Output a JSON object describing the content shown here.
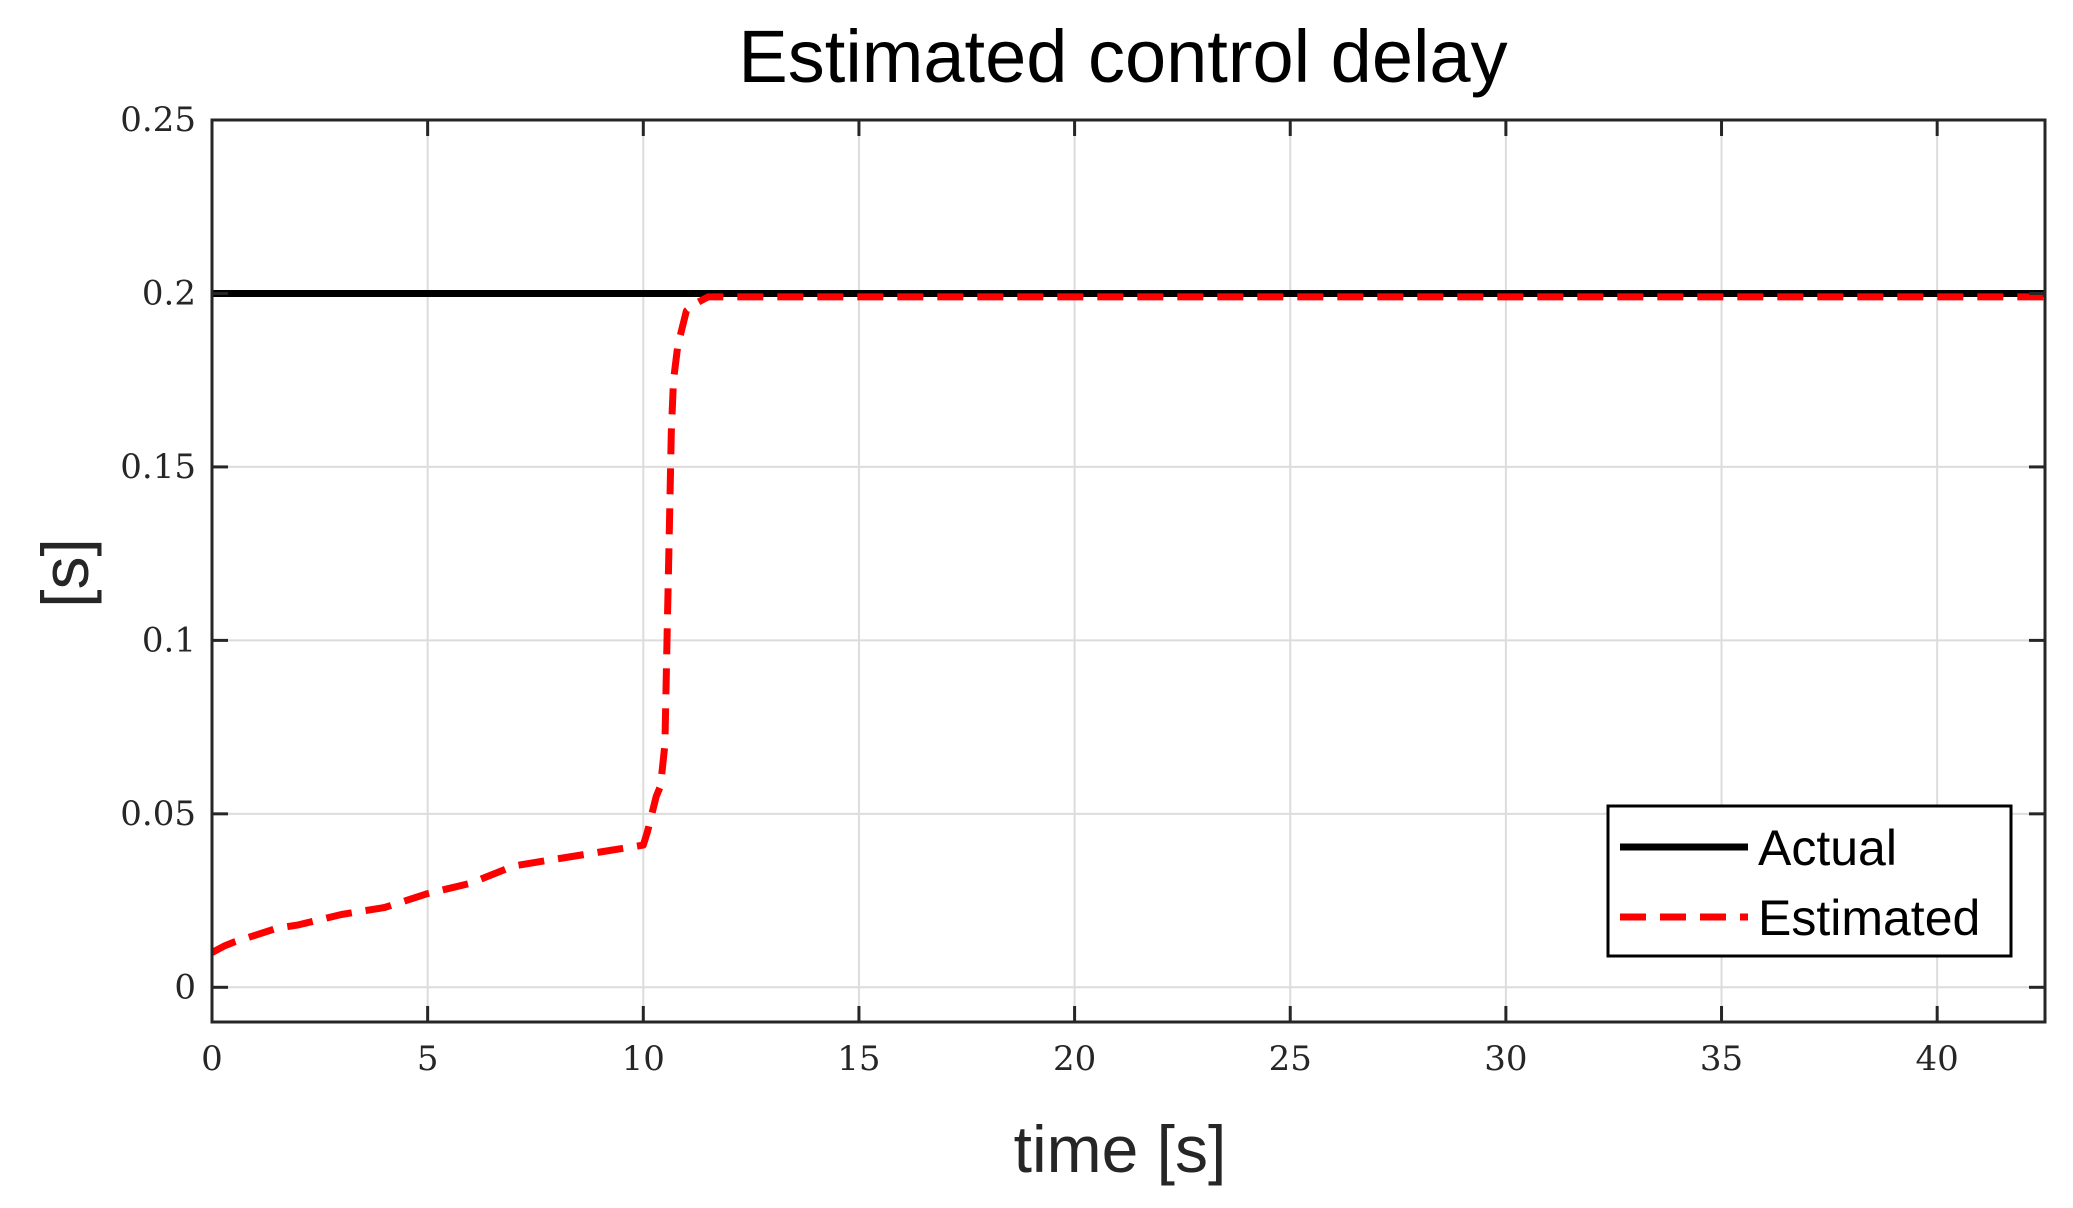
{
  "chart_data": {
    "type": "line",
    "title": "Estimated control delay",
    "xlabel": "time [s]",
    "ylabel": "[s]",
    "xlim": [
      0,
      42.5
    ],
    "ylim": [
      -0.01,
      0.25
    ],
    "xticks": [
      0,
      5,
      10,
      15,
      20,
      25,
      30,
      35,
      40
    ],
    "xtick_labels": [
      "0",
      "5",
      "10",
      "15",
      "20",
      "25",
      "30",
      "35",
      "40"
    ],
    "yticks": [
      0,
      0.05,
      0.1,
      0.15,
      0.2,
      0.25
    ],
    "ytick_labels": [
      "0",
      "0.05",
      "0.1",
      "0.15",
      "0.2",
      "0.25"
    ],
    "grid": true,
    "legend_position": "bottom-right",
    "series": [
      {
        "name": "Actual",
        "color": "#000000",
        "style": "solid",
        "x": [
          0,
          42.5
        ],
        "y": [
          0.2,
          0.2
        ]
      },
      {
        "name": "Estimated",
        "color": "#ff0000",
        "style": "dashed",
        "x": [
          0,
          0.3,
          0.5,
          1,
          1.5,
          2,
          3,
          4,
          4.5,
          5,
          6,
          7,
          8,
          9,
          10,
          10.1,
          10.2,
          10.3,
          10.4,
          10.5,
          10.55,
          10.6,
          10.65,
          10.7,
          10.8,
          10.9,
          11,
          11.2,
          11.5,
          12,
          15,
          20,
          25,
          30,
          35,
          40,
          42.5
        ],
        "y": [
          0.01,
          0.012,
          0.013,
          0.015,
          0.017,
          0.018,
          0.021,
          0.023,
          0.025,
          0.027,
          0.03,
          0.035,
          0.037,
          0.039,
          0.041,
          0.045,
          0.05,
          0.055,
          0.058,
          0.07,
          0.1,
          0.13,
          0.16,
          0.175,
          0.185,
          0.19,
          0.195,
          0.197,
          0.199,
          0.199,
          0.199,
          0.199,
          0.199,
          0.199,
          0.199,
          0.199,
          0.199
        ]
      }
    ]
  }
}
